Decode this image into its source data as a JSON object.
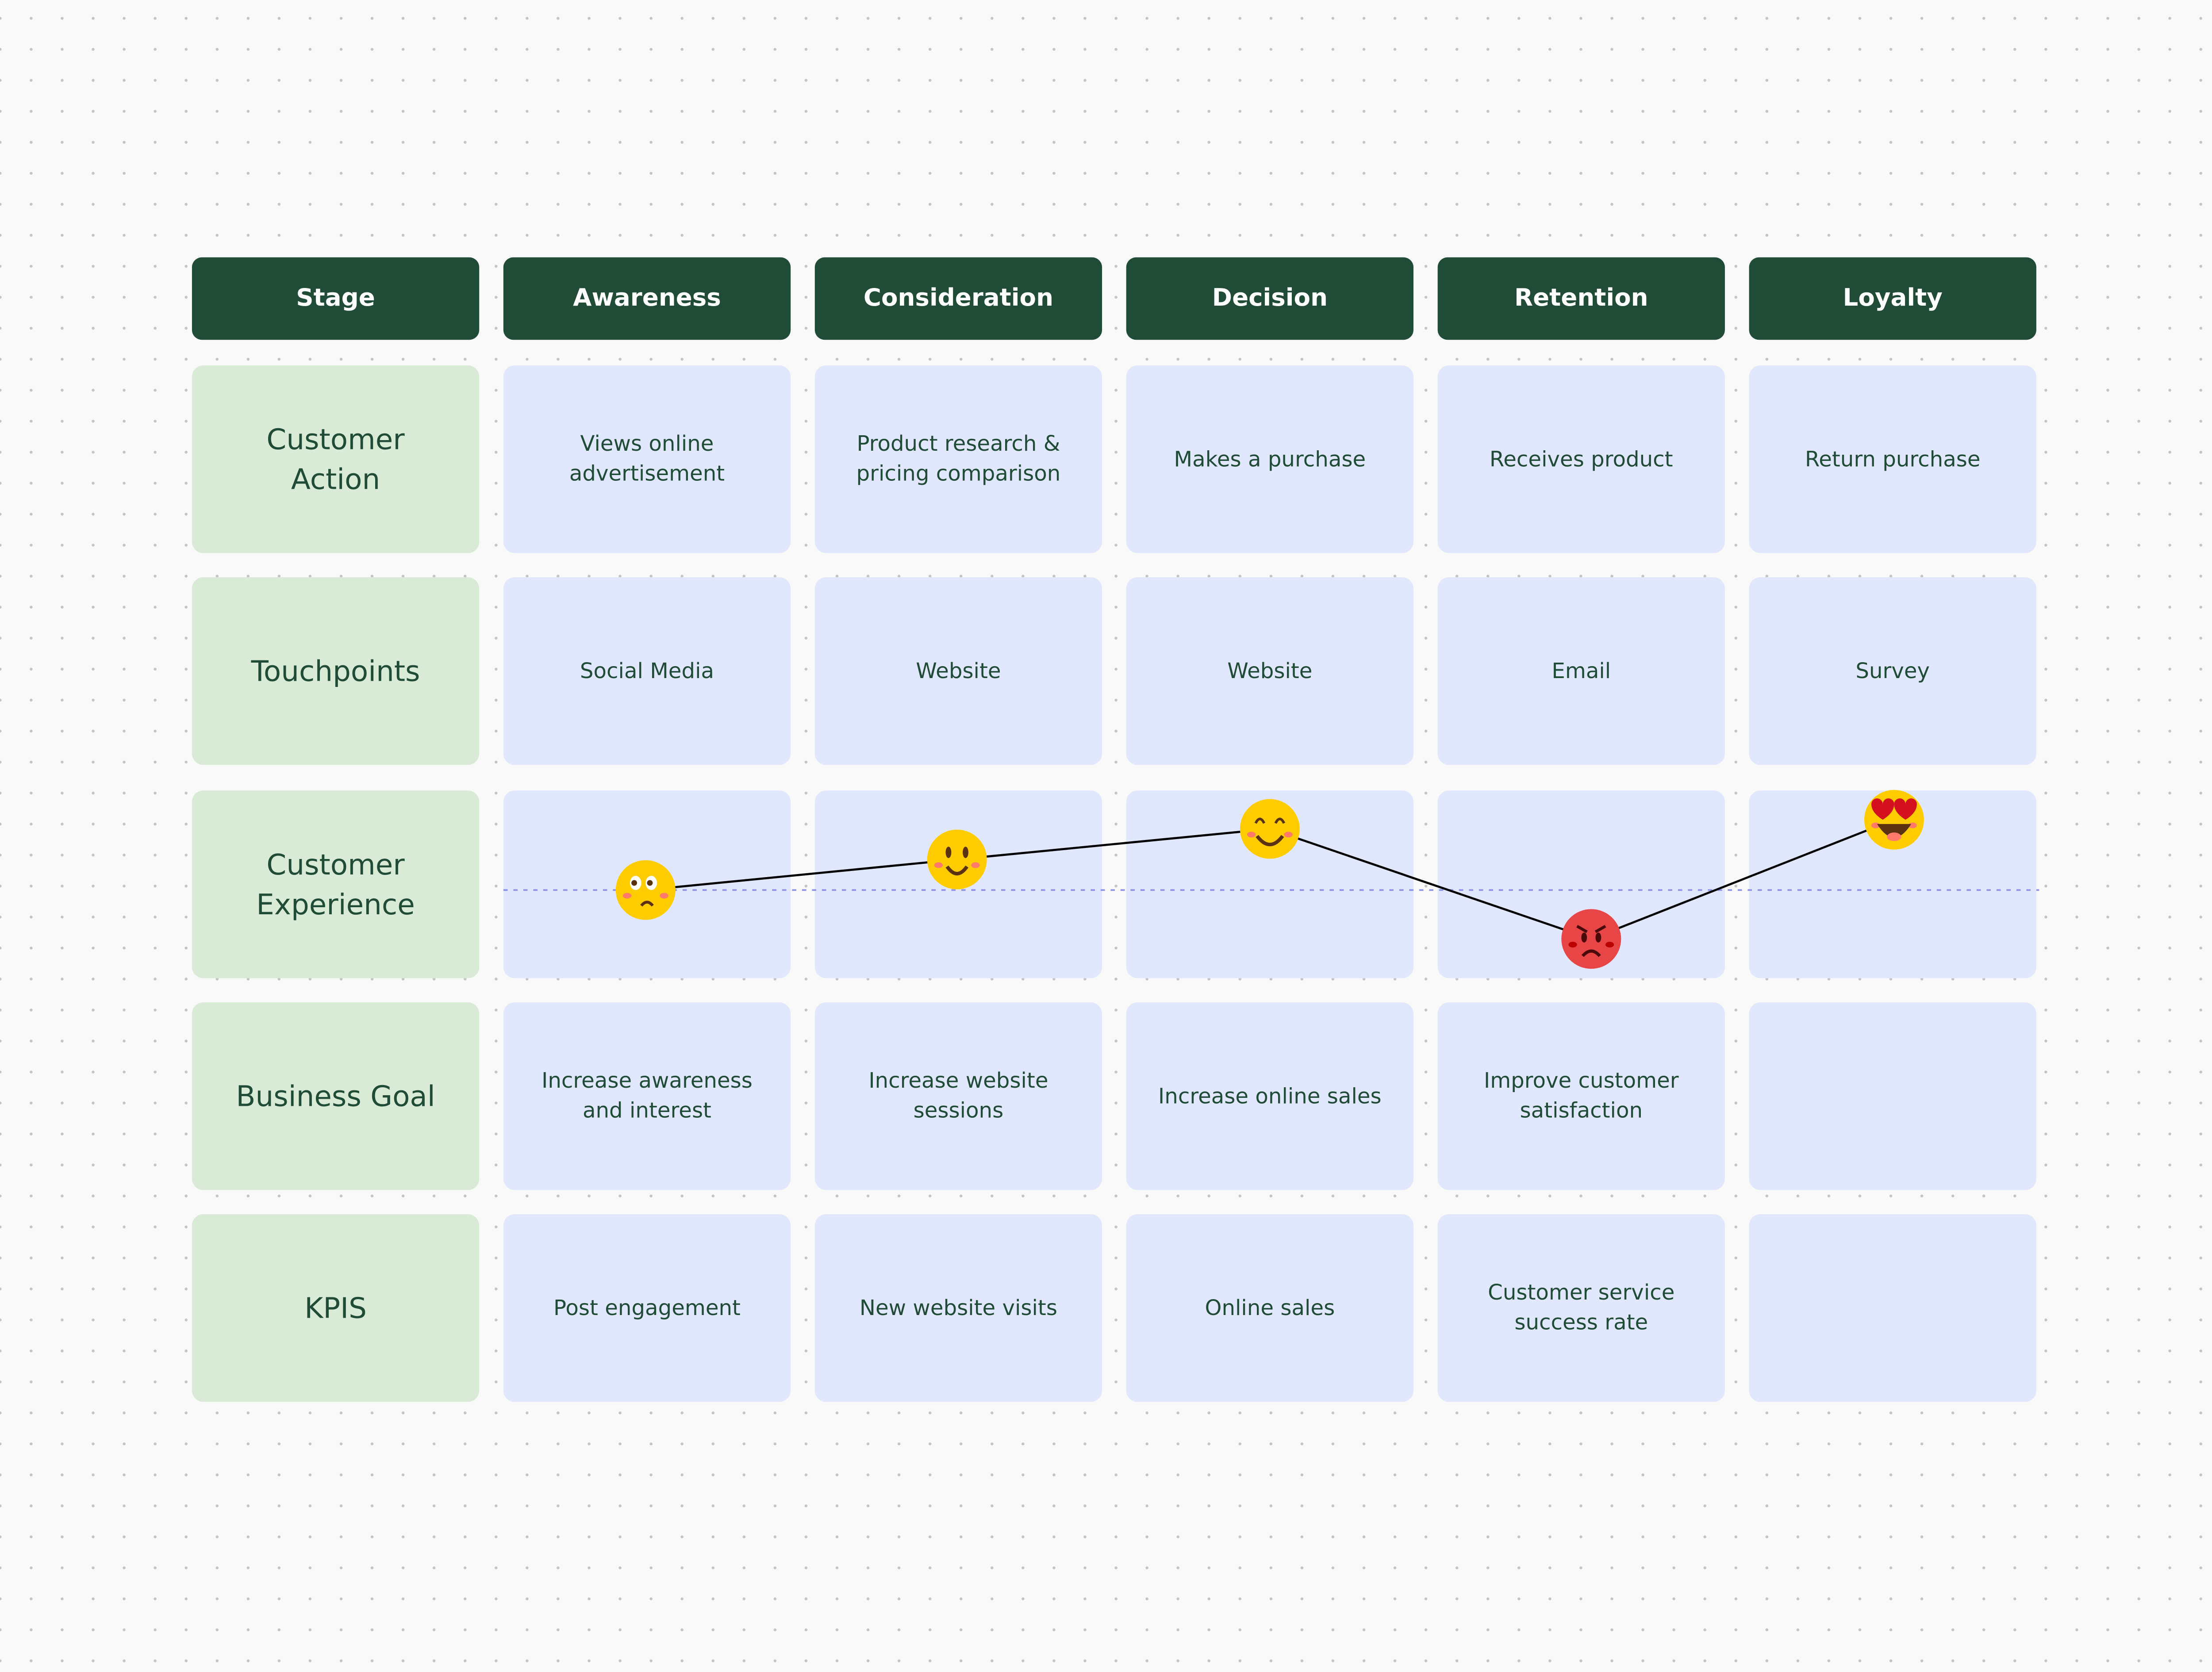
{
  "header": {
    "stage_label": "Stage",
    "stages": [
      "Awareness",
      "Consideration",
      "Decision",
      "Retention",
      "Loyalty"
    ]
  },
  "rows": [
    {
      "label": "Customer Action",
      "cells": [
        "Views online advertisement",
        "Product research & pricing comparison",
        "Makes a purchase",
        "Receives product",
        "Return purchase"
      ]
    },
    {
      "label": "Touchpoints",
      "cells": [
        "Social Media",
        "Website",
        "Website",
        "Email",
        "Survey"
      ]
    },
    {
      "label": "Customer Experience",
      "cells": [
        "",
        "",
        "",
        "",
        ""
      ]
    },
    {
      "label": "Business Goal",
      "cells": [
        "Increase awareness and interest",
        "Increase website sessions",
        "Increase online sales",
        "Improve customer satisfaction",
        ""
      ]
    },
    {
      "label": "KPIS",
      "cells": [
        "Post engagement",
        "New website visits",
        "Online sales",
        "Customer service success rate",
        ""
      ]
    }
  ],
  "experience": {
    "scale": [
      -2,
      2
    ],
    "neutral": 0,
    "points": [
      {
        "stage": "Awareness",
        "sentiment": 0,
        "emoji": "worried-face"
      },
      {
        "stage": "Consideration",
        "sentiment": 0.5,
        "emoji": "slightly-smiling-face"
      },
      {
        "stage": "Decision",
        "sentiment": 1,
        "emoji": "smiling-face-closed-eyes"
      },
      {
        "stage": "Retention",
        "sentiment": -0.8,
        "emoji": "angry-face"
      },
      {
        "stage": "Loyalty",
        "sentiment": 1.15,
        "emoji": "heart-eyes-face"
      }
    ]
  },
  "colors": {
    "header": "#1f4b37",
    "label_bg": "#d9ead6",
    "cell_bg": "#e1e7fc",
    "neutral_line": "#8f95e6",
    "happy": "#ffcc00",
    "angry": "#e84646"
  }
}
